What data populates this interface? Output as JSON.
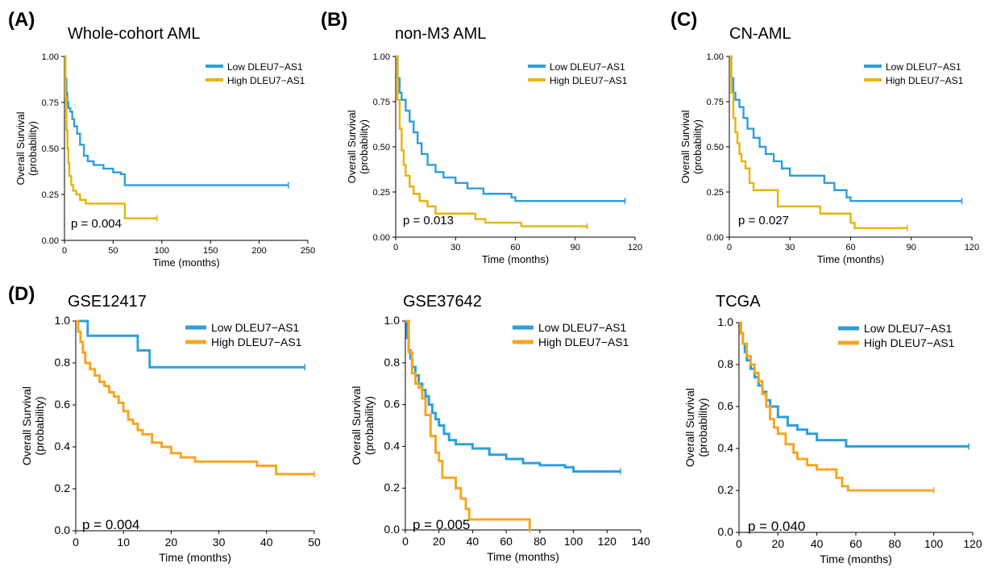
{
  "chart_data": [
    {
      "panel": "(A)",
      "type": "line",
      "title": "Whole-cohort AML",
      "xlabel": "Time (months)",
      "ylabel": "Overall Survival\n(probability)",
      "xlim": [
        0,
        250
      ],
      "ylim": [
        0,
        1
      ],
      "xticks": [
        "0",
        "50",
        "100",
        "150",
        "200",
        "250"
      ],
      "yticks": [
        "0.00",
        "0.25",
        "0.50",
        "0.75",
        "1.00"
      ],
      "annotation": "p = 0.004",
      "legend": "top-right",
      "series": [
        {
          "name": "Low DLEU7−AS1",
          "color": "#2e9fd9",
          "x": [
            0,
            1,
            2,
            3,
            4,
            6,
            8,
            10,
            13,
            16,
            20,
            24,
            30,
            40,
            50,
            58,
            62,
            120,
            230
          ],
          "y": [
            1.0,
            0.88,
            0.8,
            0.75,
            0.72,
            0.7,
            0.66,
            0.62,
            0.58,
            0.52,
            0.46,
            0.43,
            0.41,
            0.39,
            0.37,
            0.36,
            0.3,
            0.3,
            0.3
          ]
        },
        {
          "name": "High DLEU7−AS1",
          "color": "#e6b400",
          "x": [
            0,
            1,
            2,
            3,
            4,
            5,
            7,
            9,
            12,
            16,
            22,
            30,
            40,
            50,
            60,
            62,
            95
          ],
          "y": [
            1.0,
            0.78,
            0.6,
            0.5,
            0.42,
            0.35,
            0.3,
            0.27,
            0.25,
            0.22,
            0.2,
            0.2,
            0.2,
            0.2,
            0.2,
            0.12,
            0.12
          ]
        }
      ]
    },
    {
      "panel": "(B)",
      "type": "line",
      "title": "non-M3 AML",
      "xlabel": "Time (months)",
      "ylabel": "Overall Survival\n(probability)",
      "xlim": [
        0,
        120
      ],
      "ylim": [
        0,
        1
      ],
      "xticks": [
        "0",
        "30",
        "60",
        "90",
        "120"
      ],
      "yticks": [
        "0.00",
        "0.25",
        "0.50",
        "0.75",
        "1.00"
      ],
      "annotation": "p = 0.013",
      "legend": "top-right",
      "series": [
        {
          "name": "Low DLEU7−AS1",
          "color": "#2e9fd9",
          "x": [
            0,
            1,
            2,
            3,
            5,
            7,
            9,
            11,
            13,
            16,
            20,
            24,
            30,
            36,
            44,
            58,
            60,
            115
          ],
          "y": [
            1.0,
            0.88,
            0.8,
            0.76,
            0.7,
            0.64,
            0.58,
            0.52,
            0.46,
            0.4,
            0.36,
            0.33,
            0.3,
            0.27,
            0.24,
            0.22,
            0.2,
            0.2
          ]
        },
        {
          "name": "High DLEU7−AS1",
          "color": "#e6b400",
          "x": [
            0,
            1,
            2,
            3,
            4,
            5,
            7,
            9,
            12,
            16,
            20,
            30,
            40,
            45,
            60,
            63,
            96
          ],
          "y": [
            1.0,
            0.76,
            0.6,
            0.48,
            0.4,
            0.34,
            0.28,
            0.24,
            0.2,
            0.17,
            0.13,
            0.13,
            0.1,
            0.08,
            0.08,
            0.06,
            0.06
          ]
        }
      ]
    },
    {
      "panel": "(C)",
      "type": "line",
      "title": "CN-AML",
      "xlabel": "Time (months)",
      "ylabel": "Overall Survival\n(probability)",
      "xlim": [
        0,
        120
      ],
      "ylim": [
        0,
        1
      ],
      "xticks": [
        "0",
        "30",
        "60",
        "90",
        "120"
      ],
      "yticks": [
        "0.00",
        "0.25",
        "0.50",
        "0.75",
        "1.00"
      ],
      "annotation": "p = 0.027",
      "legend": "top-right",
      "series": [
        {
          "name": "Low DLEU7−AS1",
          "color": "#2e9fd9",
          "x": [
            0,
            1,
            2,
            3,
            5,
            7,
            9,
            12,
            15,
            18,
            22,
            26,
            30,
            40,
            47,
            52,
            58,
            60,
            115
          ],
          "y": [
            1.0,
            0.88,
            0.8,
            0.76,
            0.72,
            0.66,
            0.6,
            0.55,
            0.5,
            0.46,
            0.42,
            0.38,
            0.34,
            0.34,
            0.3,
            0.26,
            0.22,
            0.2,
            0.2
          ]
        },
        {
          "name": "High DLEU7−AS1",
          "color": "#e6b400",
          "x": [
            0,
            1,
            2,
            3,
            4,
            5,
            6,
            8,
            10,
            12,
            18,
            24,
            30,
            45,
            50,
            60,
            62,
            88
          ],
          "y": [
            1.0,
            0.8,
            0.66,
            0.58,
            0.52,
            0.46,
            0.42,
            0.38,
            0.3,
            0.26,
            0.26,
            0.17,
            0.17,
            0.13,
            0.13,
            0.08,
            0.05,
            0.05
          ]
        }
      ]
    },
    {
      "panel": "(D)",
      "type": "line",
      "title": "GSE12417",
      "xlabel": "Time (months)",
      "ylabel": "Overall Survival\n(probability)",
      "xlim": [
        0,
        50
      ],
      "ylim": [
        0,
        1
      ],
      "xticks": [
        "0",
        "10",
        "20",
        "30",
        "40",
        "50"
      ],
      "yticks": [
        "0.0",
        "0.2",
        "0.4",
        "0.6",
        "0.8",
        "1.0"
      ],
      "annotation": "p = 0.004",
      "legend": "top-right",
      "series": [
        {
          "name": "Low DLEU7−AS1",
          "color": "#2e9fd9",
          "x": [
            0,
            2.5,
            13,
            15.5,
            48
          ],
          "y": [
            1.0,
            0.93,
            0.86,
            0.78,
            0.78
          ]
        },
        {
          "name": "High DLEU7−AS1",
          "color": "#f5a623",
          "x": [
            0,
            0.5,
            1,
            1.5,
            2,
            3,
            4,
            5,
            6,
            7,
            8,
            9,
            10,
            11,
            12,
            13,
            14,
            16,
            18,
            20,
            22,
            25,
            28,
            30,
            35,
            38,
            42,
            50
          ],
          "y": [
            1.0,
            0.95,
            0.9,
            0.85,
            0.8,
            0.77,
            0.74,
            0.71,
            0.69,
            0.66,
            0.64,
            0.61,
            0.57,
            0.53,
            0.51,
            0.48,
            0.46,
            0.42,
            0.4,
            0.37,
            0.35,
            0.33,
            0.33,
            0.33,
            0.33,
            0.31,
            0.27,
            0.27
          ]
        }
      ]
    },
    {
      "panel": "",
      "type": "line",
      "title": "GSE37642",
      "xlabel": "Time (months)",
      "ylabel": "Overall Survival\n(probability)",
      "xlim": [
        0,
        140
      ],
      "ylim": [
        0,
        1
      ],
      "xticks": [
        "0",
        "20",
        "40",
        "60",
        "80",
        "100",
        "120",
        "140"
      ],
      "yticks": [
        "0.0",
        "0.2",
        "0.4",
        "0.6",
        "0.8",
        "1.0"
      ],
      "annotation": "p = 0.005",
      "legend": "top-right",
      "series": [
        {
          "name": "Low DLEU7−AS1",
          "color": "#2e9fd9",
          "x": [
            0,
            1,
            2,
            3,
            4,
            6,
            8,
            10,
            12,
            14,
            16,
            18,
            20,
            23,
            26,
            30,
            35,
            40,
            50,
            60,
            70,
            80,
            90,
            95,
            100,
            128
          ],
          "y": [
            1.0,
            0.92,
            0.86,
            0.82,
            0.78,
            0.74,
            0.7,
            0.67,
            0.64,
            0.6,
            0.56,
            0.53,
            0.5,
            0.46,
            0.43,
            0.41,
            0.41,
            0.39,
            0.36,
            0.34,
            0.32,
            0.31,
            0.31,
            0.3,
            0.28,
            0.28
          ]
        },
        {
          "name": "High DLEU7−AS1",
          "color": "#f5a623",
          "x": [
            0,
            2,
            4,
            6,
            8,
            10,
            12,
            15,
            18,
            20,
            22,
            25,
            30,
            33,
            36,
            38,
            40,
            74
          ],
          "y": [
            1.0,
            0.85,
            0.75,
            0.7,
            0.68,
            0.63,
            0.55,
            0.45,
            0.37,
            0.33,
            0.25,
            0.25,
            0.2,
            0.15,
            0.1,
            0.05,
            0.05,
            0.0
          ]
        }
      ]
    },
    {
      "panel": "",
      "type": "line",
      "title": "TCGA",
      "xlabel": "Time (months)",
      "ylabel": "Overall Survival\n(probability)",
      "xlim": [
        0,
        120
      ],
      "ylim": [
        0,
        1
      ],
      "xticks": [
        "0",
        "20",
        "40",
        "60",
        "80",
        "100",
        "120"
      ],
      "yticks": [
        "0.0",
        "0.2",
        "0.4",
        "0.6",
        "0.8",
        "1.0"
      ],
      "annotation": "p = 0.040",
      "legend": "top-right",
      "series": [
        {
          "name": "Low DLEU7−AS1",
          "color": "#2e9fd9",
          "x": [
            0,
            1,
            2,
            3,
            4,
            6,
            8,
            10,
            12,
            14,
            16,
            20,
            25,
            30,
            35,
            40,
            50,
            55,
            118
          ],
          "y": [
            1.0,
            0.95,
            0.9,
            0.86,
            0.82,
            0.78,
            0.74,
            0.7,
            0.67,
            0.63,
            0.6,
            0.55,
            0.51,
            0.49,
            0.47,
            0.44,
            0.44,
            0.41,
            0.41
          ]
        },
        {
          "name": "High DLEU7−AS1",
          "color": "#f5a623",
          "x": [
            0,
            1,
            2,
            4,
            6,
            8,
            10,
            12,
            14,
            16,
            18,
            20,
            24,
            28,
            30,
            35,
            40,
            45,
            50,
            53,
            56,
            100
          ],
          "y": [
            1.0,
            0.95,
            0.9,
            0.84,
            0.8,
            0.76,
            0.72,
            0.66,
            0.6,
            0.54,
            0.5,
            0.47,
            0.42,
            0.38,
            0.35,
            0.32,
            0.3,
            0.3,
            0.26,
            0.22,
            0.2,
            0.2
          ]
        }
      ]
    }
  ]
}
